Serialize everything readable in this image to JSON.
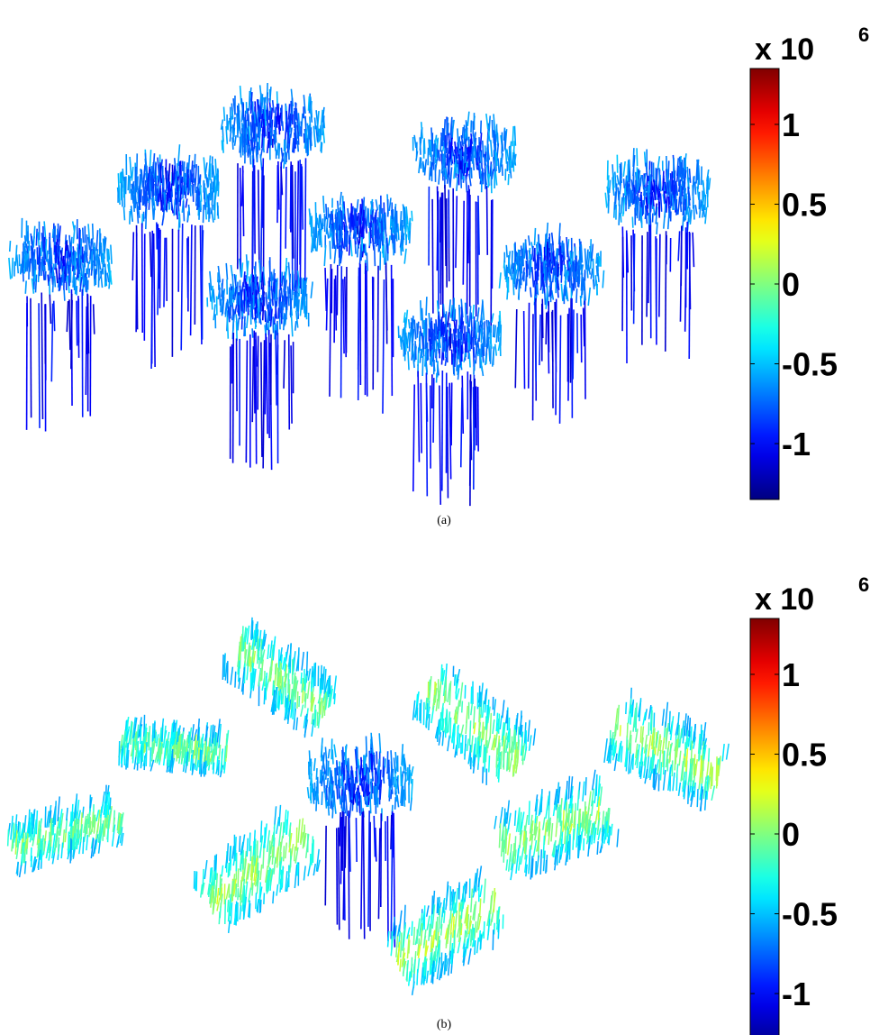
{
  "chart_data": [
    {
      "type": "quiver3d",
      "panel": "a",
      "caption": "(a)",
      "title": "",
      "colorbar": {
        "colormap": "jet",
        "multiplier": "x 10",
        "exponent": "6",
        "range": [
          -1.35,
          1.35
        ],
        "ticks": [
          {
            "value": 1,
            "label": "1"
          },
          {
            "value": 0.5,
            "label": "0.5"
          },
          {
            "value": 0,
            "label": "0"
          },
          {
            "value": -0.5,
            "label": "-0.5"
          },
          {
            "value": -1,
            "label": "-1"
          }
        ]
      },
      "clusters": [
        {
          "shape": "cup",
          "value_top": -0.55,
          "value_core": -1.15
        },
        {
          "shape": "cup",
          "value_top": -0.55,
          "value_core": -1.15
        },
        {
          "shape": "cup",
          "value_top": -0.55,
          "value_core": -1.15
        },
        {
          "shape": "cup",
          "value_top": -0.55,
          "value_core": -1.15
        },
        {
          "shape": "cup",
          "value_top": -0.55,
          "value_core": -1.15
        },
        {
          "shape": "cup",
          "value_top": -0.55,
          "value_core": -1.15
        },
        {
          "shape": "cup",
          "value_top": -0.55,
          "value_core": -1.15
        },
        {
          "shape": "cup",
          "value_top": -0.55,
          "value_core": -1.15
        },
        {
          "shape": "cup",
          "value_top": -0.55,
          "value_core": -1.15
        }
      ]
    },
    {
      "type": "quiver3d",
      "panel": "b",
      "caption": "(b)",
      "title": "",
      "colorbar": {
        "colormap": "jet",
        "multiplier": "x 10",
        "exponent": "6",
        "range": [
          -1.35,
          1.35
        ],
        "ticks": [
          {
            "value": 1,
            "label": "1"
          },
          {
            "value": 0.5,
            "label": "0.5"
          },
          {
            "value": 0,
            "label": "0"
          },
          {
            "value": -0.5,
            "label": "-0.5"
          },
          {
            "value": -1,
            "label": "-1"
          }
        ]
      },
      "clusters": [
        {
          "shape": "sheet",
          "value_min": -0.6,
          "value_max": 0.25
        },
        {
          "shape": "sheet",
          "value_min": -0.6,
          "value_max": 0.25
        },
        {
          "shape": "sheet",
          "value_min": -0.6,
          "value_max": 0.3
        },
        {
          "shape": "sheet",
          "value_min": -0.6,
          "value_max": 0.35
        },
        {
          "shape": "sheet",
          "value_min": -0.6,
          "value_max": 0.2
        },
        {
          "shape": "cup",
          "value_top": -0.55,
          "value_core": -1.15
        },
        {
          "shape": "sheet",
          "value_min": -0.55,
          "value_max": 0.3
        },
        {
          "shape": "sheet",
          "value_min": -0.6,
          "value_max": 0.3
        },
        {
          "shape": "sheet",
          "value_min": -0.6,
          "value_max": 0.35
        }
      ]
    }
  ]
}
